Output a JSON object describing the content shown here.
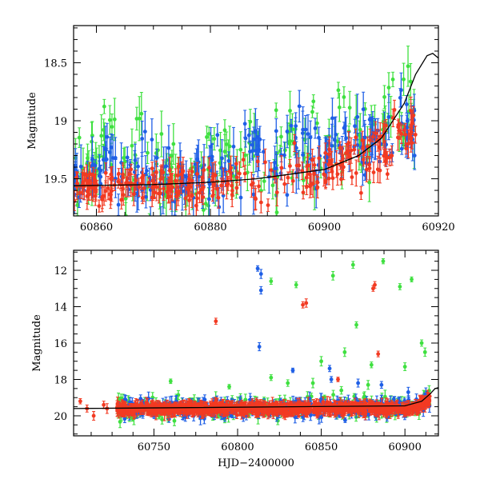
{
  "colors": {
    "green": "#3fe040",
    "blue": "#1f5fe6",
    "red": "#f23a22",
    "model": "#000000"
  },
  "chart_data": [
    {
      "type": "scatter",
      "title": "",
      "xlabel": "",
      "ylabel": "Magnitude",
      "xlim": [
        60856,
        60920
      ],
      "ylim": [
        19.82,
        18.18
      ],
      "y_inverted": true,
      "xticks": [
        60860,
        60880,
        60900,
        60920
      ],
      "yticks": [
        18.5,
        19,
        19.5
      ],
      "error_bars": true,
      "series": [
        {
          "color": "#3fe040",
          "density": [
            18,
            12,
            12,
            12,
            18,
            12,
            12,
            10,
            10,
            12,
            10,
            10,
            12,
            10,
            16,
            18
          ],
          "baseline": [
            19.4,
            19.2,
            19.3,
            19.5,
            19.55,
            19.5,
            19.3,
            19.2,
            19.4,
            19.3,
            19.3,
            19.2,
            19.1,
            19.0,
            18.95,
            18.7
          ],
          "spread": [
            0.35,
            0.45,
            0.45,
            0.45,
            0.45,
            0.45,
            0.45,
            0.5,
            0.5,
            0.45,
            0.45,
            0.45,
            0.45,
            0.4,
            0.4,
            0.35
          ]
        },
        {
          "color": "#1f5fe6",
          "density": [
            20,
            16,
            16,
            16,
            18,
            16,
            16,
            12,
            12,
            12,
            14,
            16,
            16,
            16,
            18,
            18
          ],
          "baseline": [
            19.5,
            19.4,
            19.45,
            19.5,
            19.55,
            19.5,
            19.4,
            19.3,
            19.3,
            19.3,
            19.25,
            19.2,
            19.2,
            19.1,
            19.0,
            18.8
          ],
          "spread": [
            0.25,
            0.35,
            0.35,
            0.35,
            0.3,
            0.3,
            0.35,
            0.45,
            0.45,
            0.4,
            0.3,
            0.3,
            0.3,
            0.3,
            0.3,
            0.25
          ]
        },
        {
          "color": "#f23a22",
          "density": [
            30,
            18,
            18,
            20,
            22,
            18,
            18,
            10,
            8,
            8,
            18,
            22,
            20,
            20,
            20,
            20
          ],
          "baseline": [
            19.55,
            19.55,
            19.55,
            19.55,
            19.58,
            19.55,
            19.55,
            19.5,
            19.5,
            19.4,
            19.45,
            19.4,
            19.35,
            19.25,
            19.1,
            18.95
          ],
          "spread": [
            0.15,
            0.18,
            0.18,
            0.18,
            0.18,
            0.18,
            0.18,
            0.2,
            0.2,
            0.2,
            0.2,
            0.2,
            0.2,
            0.2,
            0.2,
            0.2
          ]
        }
      ],
      "model_curve": {
        "x": [
          60856,
          60870,
          60880,
          60888,
          60894,
          60900,
          60906,
          60910,
          60914,
          60916,
          60918,
          60919,
          60920
        ],
        "y": [
          19.56,
          19.55,
          19.53,
          19.5,
          19.46,
          19.42,
          19.3,
          19.15,
          18.85,
          18.6,
          18.44,
          18.42,
          18.46
        ]
      }
    },
    {
      "type": "scatter",
      "title": "",
      "xlabel": "HJD−2400000",
      "ylabel": "Magnitude",
      "xlim": [
        60702,
        60920
      ],
      "ylim": [
        21.1,
        10.9
      ],
      "y_inverted": true,
      "xticks": [
        60750,
        60800,
        60850,
        60900
      ],
      "yticks": [
        12,
        14,
        16,
        18,
        20
      ],
      "error_bars": true,
      "dense_band": {
        "x_start": 60728,
        "x_end": 60915,
        "mag_center": 19.6,
        "mag_spread": 0.9
      },
      "series": [
        {
          "color": "#f23a22",
          "outliers": [
            [
              60706,
              19.2
            ],
            [
              60710,
              19.6
            ],
            [
              60714,
              20.0
            ],
            [
              60720,
              19.4
            ],
            [
              60722,
              19.6
            ],
            [
              60787,
              14.8
            ],
            [
              60839,
              13.9
            ],
            [
              60841,
              13.8
            ],
            [
              60860,
              18.0
            ],
            [
              60881,
              13.0
            ],
            [
              60882,
              12.8
            ],
            [
              60884,
              16.6
            ]
          ]
        },
        {
          "color": "#1f5fe6",
          "outliers": [
            [
              60812,
              11.9
            ],
            [
              60814,
              12.2
            ],
            [
              60814,
              13.1
            ],
            [
              60813,
              16.2
            ],
            [
              60833,
              17.5
            ],
            [
              60855,
              17.4
            ],
            [
              60856,
              18.0
            ],
            [
              60872,
              18.2
            ],
            [
              60886,
              18.3
            ],
            [
              60902,
              18.7
            ]
          ]
        },
        {
          "color": "#3fe040",
          "outliers": [
            [
              60820,
              12.6
            ],
            [
              60835,
              12.8
            ],
            [
              60857,
              12.3
            ],
            [
              60869,
              11.7
            ],
            [
              60871,
              15.0
            ],
            [
              60887,
              11.5
            ],
            [
              60897,
              12.9
            ],
            [
              60904,
              12.5
            ],
            [
              60900,
              17.3
            ],
            [
              60880,
              17.2
            ],
            [
              60910,
              16.0
            ],
            [
              60912,
              16.5
            ],
            [
              60830,
              18.2
            ],
            [
              60760,
              18.1
            ],
            [
              60795,
              18.4
            ],
            [
              60820,
              17.9
            ],
            [
              60845,
              18.2
            ],
            [
              60862,
              18.6
            ],
            [
              60878,
              18.3
            ],
            [
              60850,
              17.0
            ],
            [
              60864,
              16.5
            ]
          ]
        }
      ],
      "model_curve": {
        "x": [
          60700,
          60900,
          60910,
          60915,
          60918,
          60920
        ],
        "y": [
          19.6,
          19.45,
          19.2,
          18.8,
          18.5,
          18.45
        ]
      }
    }
  ]
}
